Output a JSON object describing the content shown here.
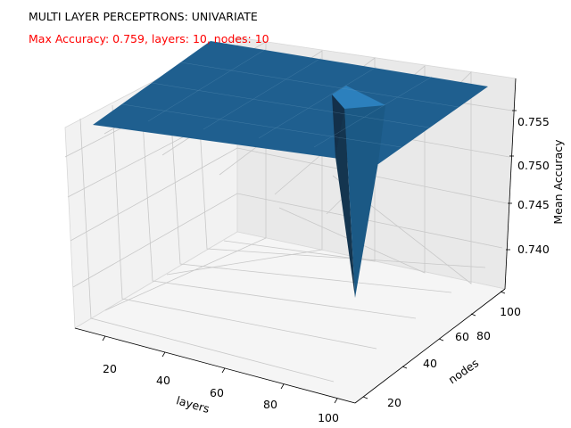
{
  "chart_data": {
    "type": "surface3d",
    "title": "MULTI LAYER PERCEPTRONS: UNIVARIATE",
    "subtitle": "Max Accuracy: 0.759, layers: 10, nodes: 10",
    "xlabel": "layers",
    "ylabel": "nodes",
    "zlabel": "Mean Accuracy",
    "x_ticks": [
      "20",
      "40",
      "60",
      "80",
      "100"
    ],
    "y_ticks": [
      "20",
      "40",
      "60",
      "80",
      "100"
    ],
    "z_ticks": [
      "0.740",
      "0.745",
      "0.750",
      "0.755"
    ],
    "xlim": [
      10,
      100
    ],
    "ylim": [
      10,
      100
    ],
    "zlim": [
      0.7355,
      0.7595
    ],
    "grid": true,
    "surface_color": "#1f5f8f",
    "surface": {
      "plateau": 0.759,
      "dip": {
        "layers": 70,
        "nodes": 50,
        "accuracy": 0.736
      }
    }
  }
}
